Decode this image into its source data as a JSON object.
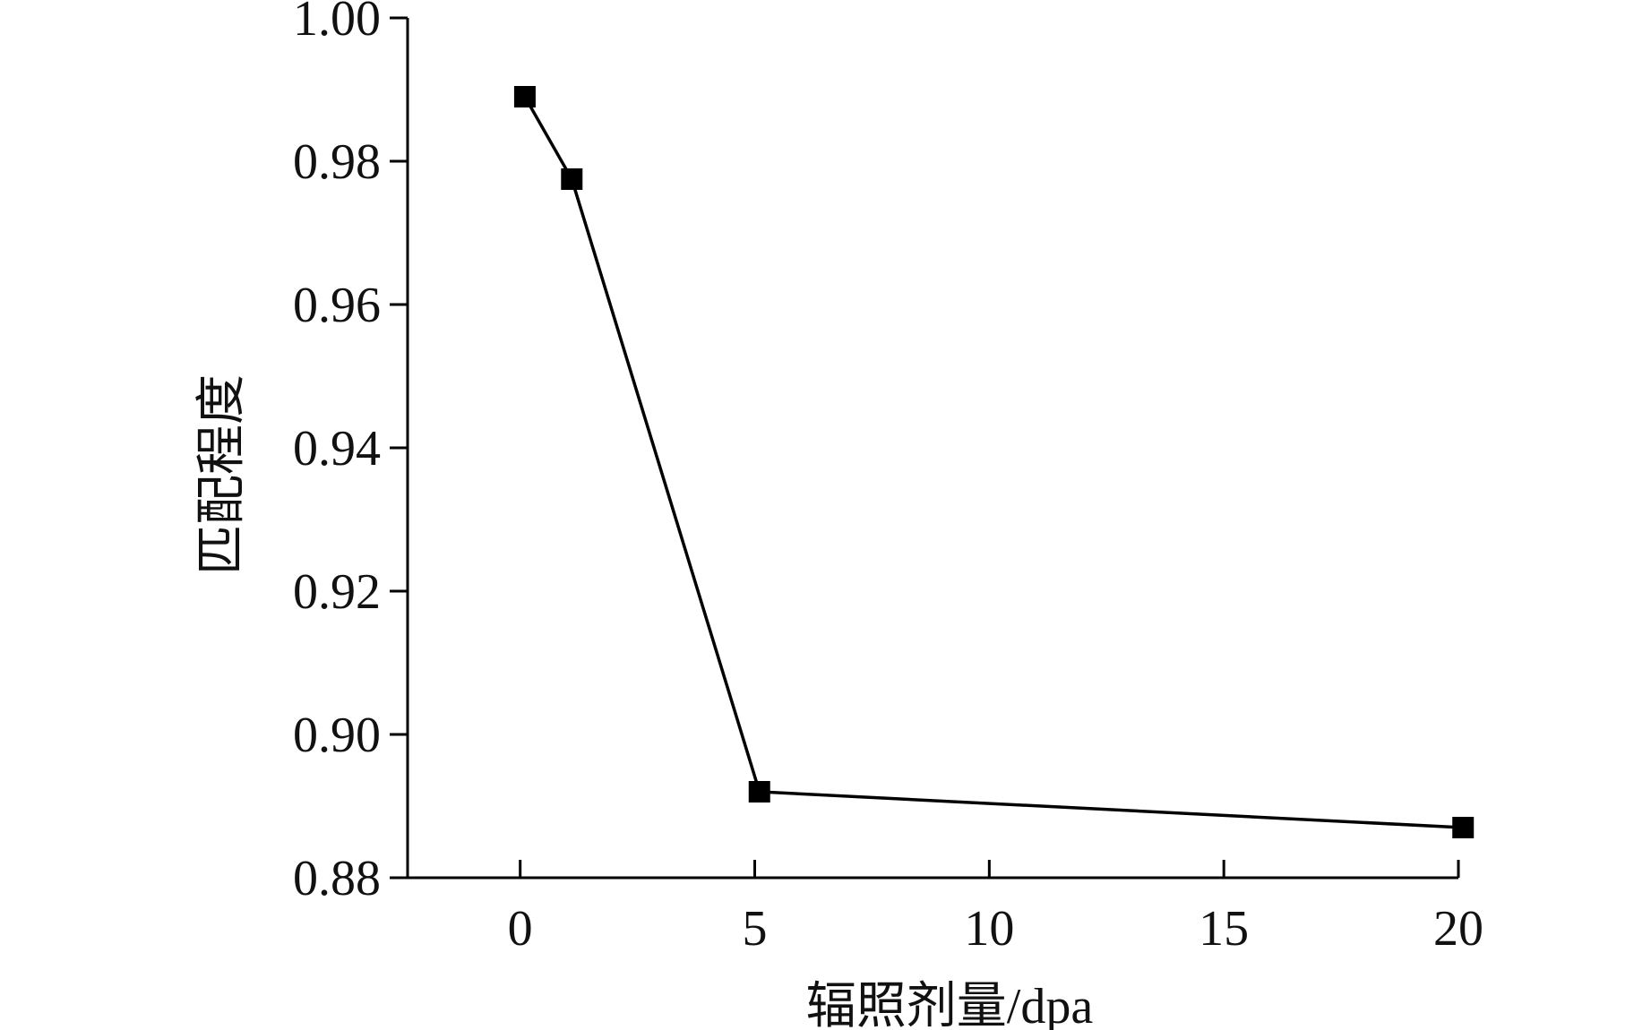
{
  "chart_data": {
    "type": "line",
    "title": "",
    "xlabel": "辐照剂量/dpa",
    "ylabel": "匹配程度",
    "xlim": [
      -2.4,
      20
    ],
    "ylim": [
      0.88,
      1.0
    ],
    "x_ticks": [
      0,
      5,
      10,
      15,
      20
    ],
    "x_tick_labels": [
      "0",
      "5",
      "10",
      "15",
      "20"
    ],
    "y_ticks": [
      0.88,
      0.9,
      0.92,
      0.94,
      0.96,
      0.98,
      1.0
    ],
    "y_tick_labels": [
      "0.88",
      "0.90",
      "0.92",
      "0.94",
      "0.96",
      "0.98",
      "1.00"
    ],
    "grid": false,
    "legend": "none",
    "series": [
      {
        "marker": "square",
        "color": "#000000",
        "x": [
          0.1,
          1.1,
          5.1,
          20.1
        ],
        "y": [
          0.989,
          0.9775,
          0.892,
          0.887
        ]
      }
    ]
  }
}
